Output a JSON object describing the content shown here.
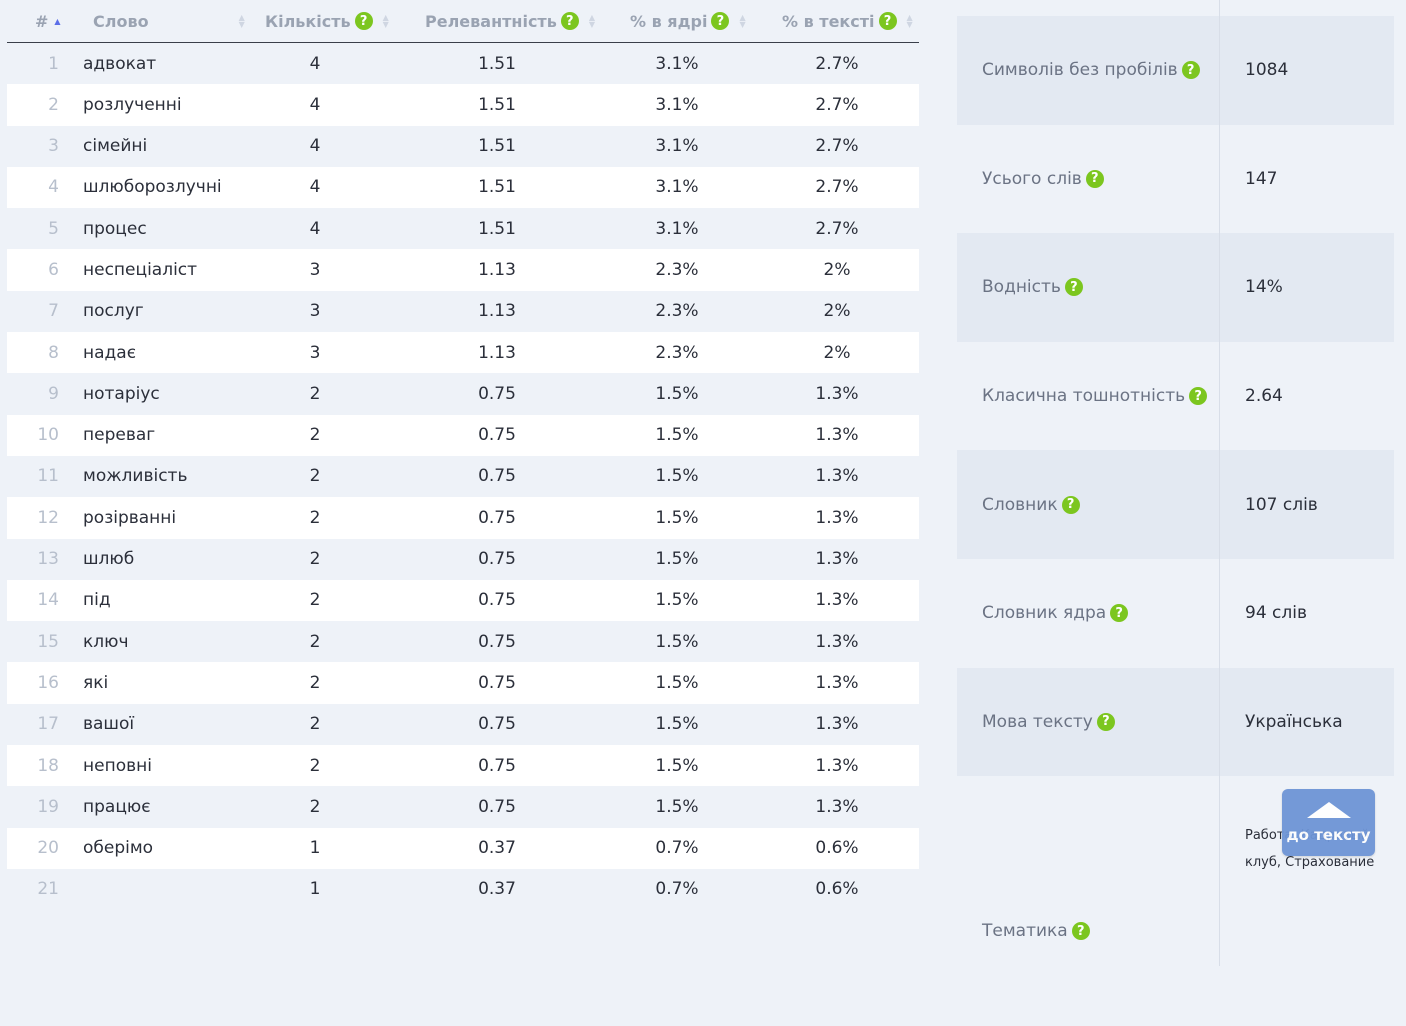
{
  "table": {
    "headers": {
      "num": "#",
      "word": "Слово",
      "count": "Кількість",
      "relevance": "Релевантність",
      "core_pct": "% в ядрі",
      "text_pct": "% в тексті"
    },
    "rows": [
      {
        "n": "1",
        "word": "адвокат",
        "count": "4",
        "rel": "1.51",
        "core": "3.1%",
        "text": "2.7%"
      },
      {
        "n": "2",
        "word": "розлученні",
        "count": "4",
        "rel": "1.51",
        "core": "3.1%",
        "text": "2.7%"
      },
      {
        "n": "3",
        "word": "сімейні",
        "count": "4",
        "rel": "1.51",
        "core": "3.1%",
        "text": "2.7%"
      },
      {
        "n": "4",
        "word": "шлюборозлучні",
        "count": "4",
        "rel": "1.51",
        "core": "3.1%",
        "text": "2.7%"
      },
      {
        "n": "5",
        "word": "процес",
        "count": "4",
        "rel": "1.51",
        "core": "3.1%",
        "text": "2.7%"
      },
      {
        "n": "6",
        "word": "неспеціаліст",
        "count": "3",
        "rel": "1.13",
        "core": "2.3%",
        "text": "2%"
      },
      {
        "n": "7",
        "word": "послуг",
        "count": "3",
        "rel": "1.13",
        "core": "2.3%",
        "text": "2%"
      },
      {
        "n": "8",
        "word": "надає",
        "count": "3",
        "rel": "1.13",
        "core": "2.3%",
        "text": "2%"
      },
      {
        "n": "9",
        "word": "нотаріус",
        "count": "2",
        "rel": "0.75",
        "core": "1.5%",
        "text": "1.3%"
      },
      {
        "n": "10",
        "word": "переваг",
        "count": "2",
        "rel": "0.75",
        "core": "1.5%",
        "text": "1.3%"
      },
      {
        "n": "11",
        "word": "можливість",
        "count": "2",
        "rel": "0.75",
        "core": "1.5%",
        "text": "1.3%"
      },
      {
        "n": "12",
        "word": "розірванні",
        "count": "2",
        "rel": "0.75",
        "core": "1.5%",
        "text": "1.3%"
      },
      {
        "n": "13",
        "word": "шлюб",
        "count": "2",
        "rel": "0.75",
        "core": "1.5%",
        "text": "1.3%"
      },
      {
        "n": "14",
        "word": "під",
        "count": "2",
        "rel": "0.75",
        "core": "1.5%",
        "text": "1.3%"
      },
      {
        "n": "15",
        "word": "ключ",
        "count": "2",
        "rel": "0.75",
        "core": "1.5%",
        "text": "1.3%"
      },
      {
        "n": "16",
        "word": "які",
        "count": "2",
        "rel": "0.75",
        "core": "1.5%",
        "text": "1.3%"
      },
      {
        "n": "17",
        "word": "вашої",
        "count": "2",
        "rel": "0.75",
        "core": "1.5%",
        "text": "1.3%"
      },
      {
        "n": "18",
        "word": "неповні",
        "count": "2",
        "rel": "0.75",
        "core": "1.5%",
        "text": "1.3%"
      },
      {
        "n": "19",
        "word": "працює",
        "count": "2",
        "rel": "0.75",
        "core": "1.5%",
        "text": "1.3%"
      },
      {
        "n": "20",
        "word": "оберімо",
        "count": "1",
        "rel": "0.37",
        "core": "0.7%",
        "text": "0.6%"
      },
      {
        "n": "21",
        "word": "",
        "count": "1",
        "rel": "0.37",
        "core": "0.7%",
        "text": "0.6%"
      }
    ]
  },
  "stats": [
    {
      "label": "Символів без пробілів",
      "value": "1084"
    },
    {
      "label": "Усього слів",
      "value": "147"
    },
    {
      "label": "Водність",
      "value": "14%"
    },
    {
      "label": "Класична тошнотність",
      "value": "2.64"
    },
    {
      "label": "Словник",
      "value": "107 слів"
    },
    {
      "label": "Словник ядра",
      "value": "94 слів"
    },
    {
      "label": "Мова тексту",
      "value": "Українська"
    },
    {
      "label": "Тематика",
      "value": "Работа, Кадровый клуб, Страхование"
    }
  ],
  "help_glyph": "?",
  "to_text_button": {
    "label": "до тексту"
  },
  "colors": {
    "help_icon": "#7cc61f",
    "sort_active": "#5b6ee8",
    "button": "#6e95d6"
  }
}
